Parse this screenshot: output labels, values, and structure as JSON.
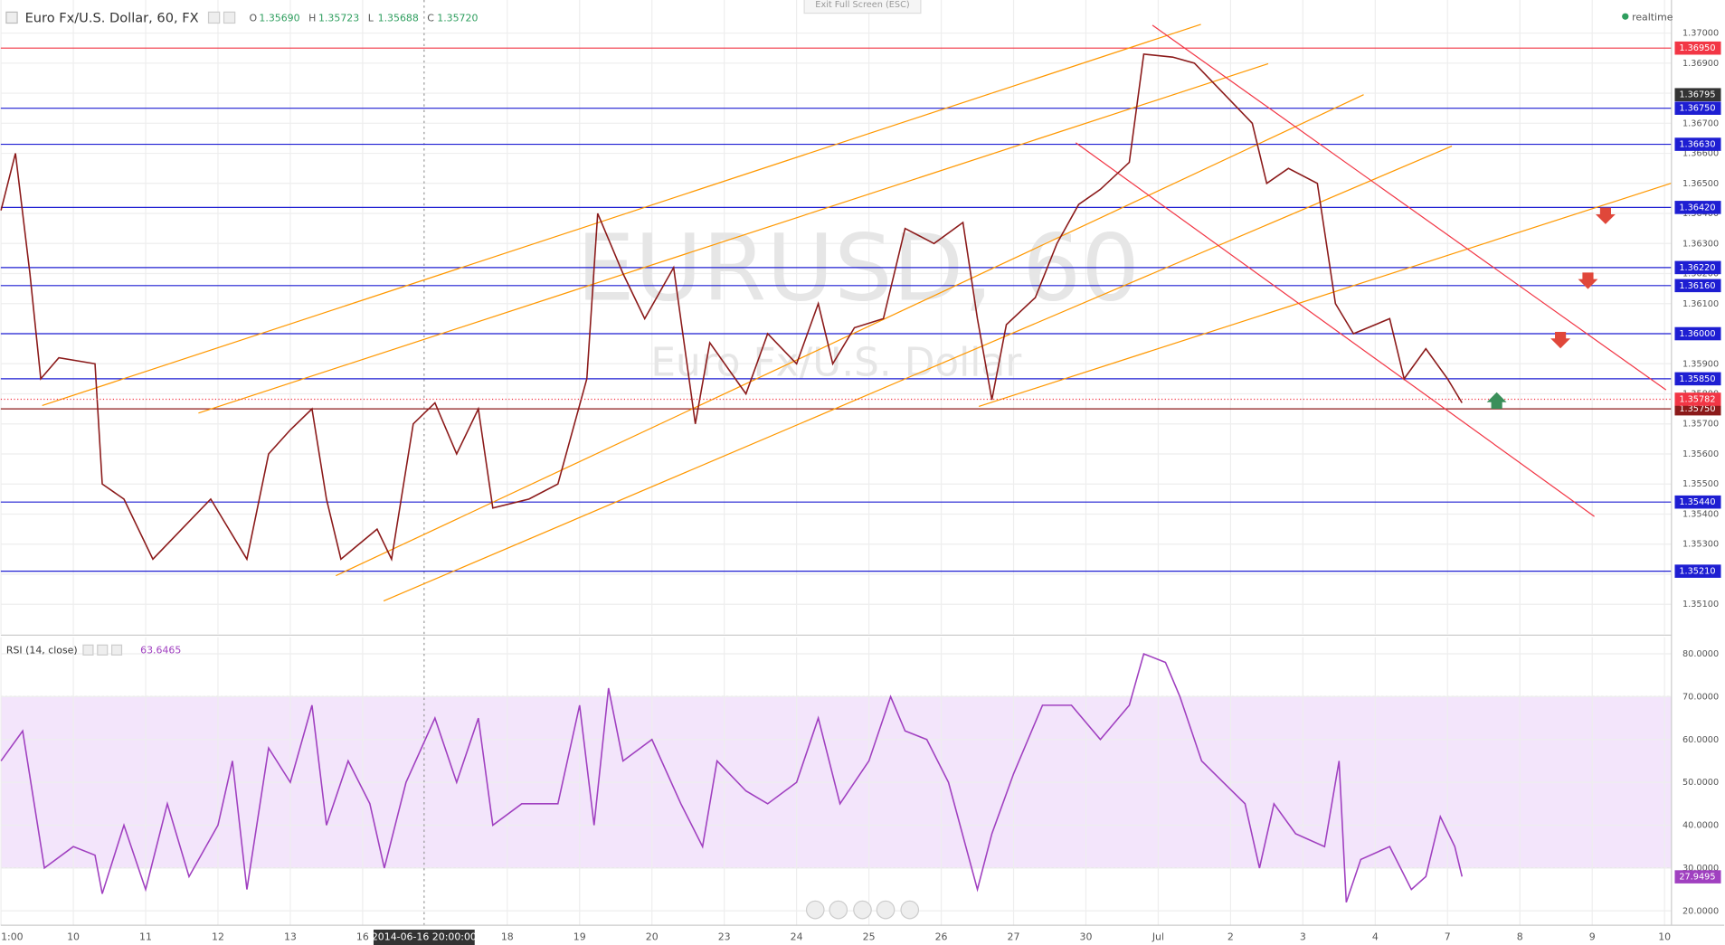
{
  "chart_data": [
    {
      "type": "line",
      "title": "Euro Fx/U.S. Dollar, 60, FX",
      "ohlc": {
        "names": [
          "O",
          "H",
          "L",
          "C"
        ],
        "values": [
          1.3569,
          1.35723,
          1.35688,
          1.3572
        ],
        "value_labels": [
          "1.35690",
          "1.35723",
          "1.35688",
          "1.35720"
        ]
      },
      "status": "realtime",
      "button": "Exit Full Screen (ESC)",
      "watermark": "EURUSD, 60",
      "watermark_subtitle": "Euro Fx/U.S. Dollar",
      "x": [
        -1.0,
        -0.8,
        -0.6,
        -0.45,
        -0.2,
        0.3,
        0.4,
        0.7,
        1.1,
        1.5,
        1.9,
        2.4,
        2.7,
        3.0,
        3.3,
        3.5,
        3.7,
        4.2,
        4.4,
        4.7,
        5.0,
        5.3,
        5.6,
        5.8,
        6.3,
        6.7,
        7.1,
        7.25,
        7.6,
        7.9,
        8.3,
        8.6,
        8.8,
        9.3,
        9.6,
        10.0,
        10.3,
        10.5,
        10.8,
        11.2,
        11.5,
        11.9,
        12.3,
        12.5,
        12.7,
        12.9,
        13.3,
        13.6,
        13.9,
        14.2,
        14.6,
        14.8,
        15.2,
        15.5,
        15.9,
        16.3,
        16.5,
        16.8,
        17.2,
        17.45,
        17.7,
        18.2,
        18.4,
        18.7,
        19.0,
        19.2
      ],
      "series": [
        {
          "color": "#8b1a1a",
          "values": [
            1.3641,
            1.366,
            1.362,
            1.3585,
            1.3592,
            1.359,
            1.355,
            1.3545,
            1.3525,
            1.3535,
            1.3545,
            1.3525,
            1.356,
            1.3568,
            1.3575,
            1.3545,
            1.3525,
            1.3535,
            1.3525,
            1.357,
            1.3577,
            1.356,
            1.3575,
            1.3542,
            1.3545,
            1.355,
            1.3585,
            1.364,
            1.362,
            1.3605,
            1.3622,
            1.357,
            1.3597,
            1.358,
            1.36,
            1.359,
            1.361,
            1.359,
            1.3602,
            1.3605,
            1.3635,
            1.363,
            1.3637,
            1.3605,
            1.3578,
            1.3603,
            1.3612,
            1.363,
            1.3643,
            1.3648,
            1.3657,
            1.3693,
            1.3692,
            1.369,
            1.368,
            1.367,
            1.365,
            1.3655,
            1.365,
            1.361,
            1.36,
            1.3605,
            1.3585,
            1.3595,
            1.3585,
            1.3577
          ]
        }
      ],
      "xlim": [
        -1.003,
        22.096
      ],
      "ylim": [
        1.35001,
        1.3711
      ],
      "xticks": [
        {
          "value": -1.0,
          "label": "1:00"
        },
        {
          "value": 0,
          "label": "10"
        },
        {
          "value": 1,
          "label": "11"
        },
        {
          "value": 2,
          "label": "12"
        },
        {
          "value": 3,
          "label": "13"
        },
        {
          "value": 4,
          "label": "16"
        },
        {
          "value": 6,
          "label": "18"
        },
        {
          "value": 7,
          "label": "19"
        },
        {
          "value": 8,
          "label": "20"
        },
        {
          "value": 9,
          "label": "23"
        },
        {
          "value": 10,
          "label": "24"
        },
        {
          "value": 11,
          "label": "25"
        },
        {
          "value": 12,
          "label": "26"
        },
        {
          "value": 13,
          "label": "27"
        },
        {
          "value": 14,
          "label": "30"
        },
        {
          "value": 15,
          "label": "Jul"
        },
        {
          "value": 16,
          "label": "2"
        },
        {
          "value": 17,
          "label": "3"
        },
        {
          "value": 18,
          "label": "4"
        },
        {
          "value": 19,
          "label": "7"
        },
        {
          "value": 20,
          "label": "8"
        },
        {
          "value": 21,
          "label": "9"
        },
        {
          "value": 22,
          "label": "10"
        }
      ],
      "yticks": [
        {
          "value": 1.351,
          "label": "1.35100"
        },
        {
          "value": 1.352,
          "label": "1.35200"
        },
        {
          "value": 1.353,
          "label": "1.35300"
        },
        {
          "value": 1.354,
          "label": "1.35400"
        },
        {
          "value": 1.355,
          "label": "1.35500"
        },
        {
          "value": 1.356,
          "label": "1.35600"
        },
        {
          "value": 1.357,
          "label": "1.35700"
        },
        {
          "value": 1.358,
          "label": "1.35800"
        },
        {
          "value": 1.359,
          "label": "1.35900"
        },
        {
          "value": 1.36,
          "label": "1.36000"
        },
        {
          "value": 1.361,
          "label": "1.36100"
        },
        {
          "value": 1.362,
          "label": "1.36200"
        },
        {
          "value": 1.363,
          "label": "1.36300"
        },
        {
          "value": 1.364,
          "label": "1.36400"
        },
        {
          "value": 1.365,
          "label": "1.36500"
        },
        {
          "value": 1.366,
          "label": "1.36600"
        },
        {
          "value": 1.367,
          "label": "1.36700"
        },
        {
          "value": 1.368,
          "label": "1.36800"
        },
        {
          "value": 1.369,
          "label": "1.36900"
        },
        {
          "value": 1.37,
          "label": "1.37000"
        }
      ],
      "grid": true,
      "levels": [
        {
          "value": 1.3695,
          "label": "1.36950",
          "color": "#f23645"
        },
        {
          "value": 1.3675,
          "label": "1.36750",
          "color": "#1e1ed2"
        },
        {
          "value": 1.3663,
          "label": "1.36630",
          "color": "#1e1ed2"
        },
        {
          "value": 1.3642,
          "label": "1.36420",
          "color": "#1e1ed2"
        },
        {
          "value": 1.3622,
          "label": "1.36220",
          "color": "#1e1ed2"
        },
        {
          "value": 1.3616,
          "label": "1.36160",
          "color": "#1e1ed2"
        },
        {
          "value": 1.36,
          "label": "1.36000",
          "color": "#1e1ed2"
        },
        {
          "value": 1.3585,
          "label": "1.35850",
          "color": "#1e1ed2"
        },
        {
          "value": 1.3575,
          "label": "1.35750",
          "color": "#8b1a1a"
        },
        {
          "value": 1.3544,
          "label": "1.35440",
          "color": "#1e1ed2"
        },
        {
          "value": 1.3521,
          "label": "1.35210",
          "color": "#1e1ed2"
        }
      ],
      "last_price": {
        "value": 1.35782,
        "label": "1.35782",
        "color": "#f23645"
      },
      "crosshair": {
        "x": 4.85,
        "label": "2014-06-16 20:00:00",
        "price": {
          "value": 1.36795,
          "label": "1.36795"
        }
      },
      "channels": [
        {
          "color": "#ff9800",
          "x": [
            -0.43,
            15.59
          ],
          "y": [
            1.35761,
            1.37029
          ]
        },
        {
          "color": "#ff9800",
          "x": [
            1.73,
            16.52
          ],
          "y": [
            1.35736,
            1.36898
          ]
        },
        {
          "color": "#ff9800",
          "x": [
            3.63,
            17.84
          ],
          "y": [
            1.35195,
            1.36795
          ]
        },
        {
          "color": "#ff9800",
          "x": [
            4.29,
            19.06
          ],
          "y": [
            1.35111,
            1.36624
          ]
        },
        {
          "color": "#ff9800",
          "x": [
            12.52,
            22.1
          ],
          "y": [
            1.35758,
            1.36501
          ]
        },
        {
          "color": "#f23645",
          "x": [
            14.92,
            22.02
          ],
          "y": [
            1.37026,
            1.35813
          ]
        },
        {
          "color": "#f23645",
          "x": [
            13.86,
            21.03
          ],
          "y": [
            1.36635,
            1.35392
          ]
        }
      ]
    },
    {
      "type": "line",
      "title": "RSI (14, close)",
      "current": 63.6465,
      "x": [
        -1.0,
        -0.7,
        -0.4,
        0.0,
        0.3,
        0.4,
        0.7,
        1.0,
        1.3,
        1.6,
        2.0,
        2.2,
        2.4,
        2.7,
        3.0,
        3.3,
        3.5,
        3.8,
        4.1,
        4.3,
        4.6,
        5.0,
        5.3,
        5.6,
        5.8,
        6.2,
        6.7,
        7.0,
        7.2,
        7.4,
        7.6,
        8.0,
        8.4,
        8.7,
        8.9,
        9.3,
        9.6,
        10.0,
        10.3,
        10.6,
        11.0,
        11.3,
        11.5,
        11.8,
        12.1,
        12.5,
        12.7,
        13.0,
        13.4,
        13.8,
        14.2,
        14.6,
        14.8,
        15.1,
        15.3,
        15.6,
        15.9,
        16.2,
        16.4,
        16.6,
        16.9,
        17.3,
        17.5,
        17.6,
        17.8,
        18.2,
        18.5,
        18.7,
        18.9,
        19.1,
        19.2
      ],
      "series": [
        {
          "color": "#a040c0",
          "values": [
            55,
            62,
            30,
            35,
            33,
            24,
            40,
            25,
            45,
            28,
            40,
            55,
            25,
            58,
            50,
            68,
            40,
            55,
            45,
            30,
            50,
            65,
            50,
            65,
            40,
            45,
            45,
            68,
            40,
            72,
            55,
            60,
            45,
            35,
            55,
            48,
            45,
            50,
            65,
            45,
            55,
            70,
            62,
            60,
            50,
            25,
            38,
            52,
            68,
            68,
            60,
            68,
            80,
            78,
            70,
            55,
            50,
            45,
            30,
            45,
            38,
            35,
            55,
            22,
            32,
            35,
            25,
            28,
            42,
            35,
            28
          ]
        }
      ],
      "last": 27.9495,
      "xlim": [
        -1.003,
        22.096
      ],
      "ylim": [
        14.6,
        83.85
      ],
      "yticks": [
        {
          "value": 20,
          "label": "20.0000"
        },
        {
          "value": 30,
          "label": "30.0000"
        },
        {
          "value": 40,
          "label": "40.0000"
        },
        {
          "value": 50,
          "label": "50.0000"
        },
        {
          "value": 60,
          "label": "60.0000"
        },
        {
          "value": 70,
          "label": "70.0000"
        },
        {
          "value": 80,
          "label": "80.0000"
        }
      ],
      "band": [
        30,
        70
      ],
      "band_color": "#f3e5fb"
    }
  ]
}
